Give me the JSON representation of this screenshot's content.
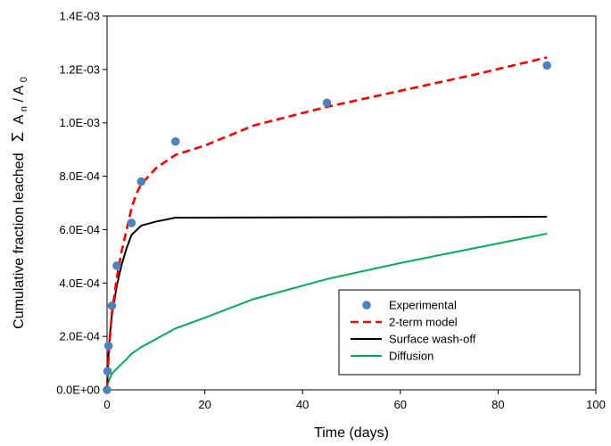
{
  "chart_data": {
    "type": "scatter",
    "title": "",
    "xlabel": "Time (days)",
    "ylabel": {
      "main": "Cumulative fraction leached",
      "symbol": "Σ",
      "a": "A",
      "n": "n",
      "slash": "/",
      "a0": "A",
      "zero": "0"
    },
    "xlim": [
      0,
      100
    ],
    "ylim": [
      0,
      0.0014
    ],
    "x_ticks": [
      {
        "value": 0,
        "label": "0"
      },
      {
        "value": 20,
        "label": "20"
      },
      {
        "value": 40,
        "label": "40"
      },
      {
        "value": 60,
        "label": "60"
      },
      {
        "value": 80,
        "label": "80"
      },
      {
        "value": 100,
        "label": "100"
      }
    ],
    "y_ticks": [
      {
        "value": 0,
        "label": "0.0E+00"
      },
      {
        "value": 0.0002,
        "label": "2.0E-04"
      },
      {
        "value": 0.0004,
        "label": "4.0E-04"
      },
      {
        "value": 0.0006,
        "label": "6.0E-04"
      },
      {
        "value": 0.0008,
        "label": "8.0E-04"
      },
      {
        "value": 0.001,
        "label": "1.0E-03"
      },
      {
        "value": 0.0012,
        "label": "1.2E-03"
      },
      {
        "value": 0.0014,
        "label": "1.4E-03"
      }
    ],
    "grid": false,
    "legend_position": "bottom-right",
    "series": [
      {
        "name": "Experimental",
        "kind": "points",
        "color": "#4F81BD",
        "points": [
          [
            0,
            0.0
          ],
          [
            0.1,
            7e-05
          ],
          [
            0.3,
            0.000165
          ],
          [
            1,
            0.000315
          ],
          [
            2,
            0.000465
          ],
          [
            5,
            0.000625
          ],
          [
            7,
            0.00078
          ],
          [
            14,
            0.00093
          ],
          [
            45,
            0.001075
          ],
          [
            90,
            0.001215
          ]
        ]
      },
      {
        "name": "2-term model",
        "kind": "line",
        "dash": "dashed",
        "color": "#FF0000",
        "points": [
          [
            0,
            0.0
          ],
          [
            0.1,
            5e-05
          ],
          [
            0.3,
            0.00012
          ],
          [
            0.6,
            0.0002
          ],
          [
            1,
            0.00029
          ],
          [
            2,
            0.00042
          ],
          [
            3,
            0.00052
          ],
          [
            4,
            0.0006
          ],
          [
            5,
            0.00068
          ],
          [
            6,
            0.000735
          ],
          [
            7,
            0.00077
          ],
          [
            10,
            0.00083
          ],
          [
            14,
            0.00088
          ],
          [
            20,
            0.000915
          ],
          [
            30,
            0.00099
          ],
          [
            45,
            0.00106
          ],
          [
            60,
            0.00112
          ],
          [
            75,
            0.00118
          ],
          [
            90,
            0.001245
          ]
        ]
      },
      {
        "name": "Surface wash-off",
        "kind": "line",
        "dash": "solid",
        "color": "#000000",
        "points": [
          [
            0,
            0.0
          ],
          [
            0.1,
            5e-05
          ],
          [
            0.3,
            0.00013
          ],
          [
            0.6,
            0.00021
          ],
          [
            1,
            0.00028
          ],
          [
            2,
            0.00039
          ],
          [
            3,
            0.00047
          ],
          [
            4,
            0.00053
          ],
          [
            5,
            0.00058
          ],
          [
            7,
            0.000615
          ],
          [
            10,
            0.00063
          ],
          [
            14,
            0.000645
          ],
          [
            45,
            0.000646
          ],
          [
            90,
            0.000648
          ]
        ]
      },
      {
        "name": "Diffusion",
        "kind": "line",
        "dash": "solid",
        "color": "#00B050",
        "points": [
          [
            0,
            0.0
          ],
          [
            0.1,
            2e-05
          ],
          [
            0.5,
            4e-05
          ],
          [
            1,
            6e-05
          ],
          [
            2,
            8e-05
          ],
          [
            4,
            0.000115
          ],
          [
            5,
            0.000135
          ],
          [
            7,
            0.00016
          ],
          [
            10,
            0.00019
          ],
          [
            14,
            0.00023
          ],
          [
            20,
            0.00027
          ],
          [
            30,
            0.00034
          ],
          [
            45,
            0.000415
          ],
          [
            60,
            0.000475
          ],
          [
            75,
            0.00053
          ],
          [
            90,
            0.000585
          ]
        ]
      }
    ]
  }
}
